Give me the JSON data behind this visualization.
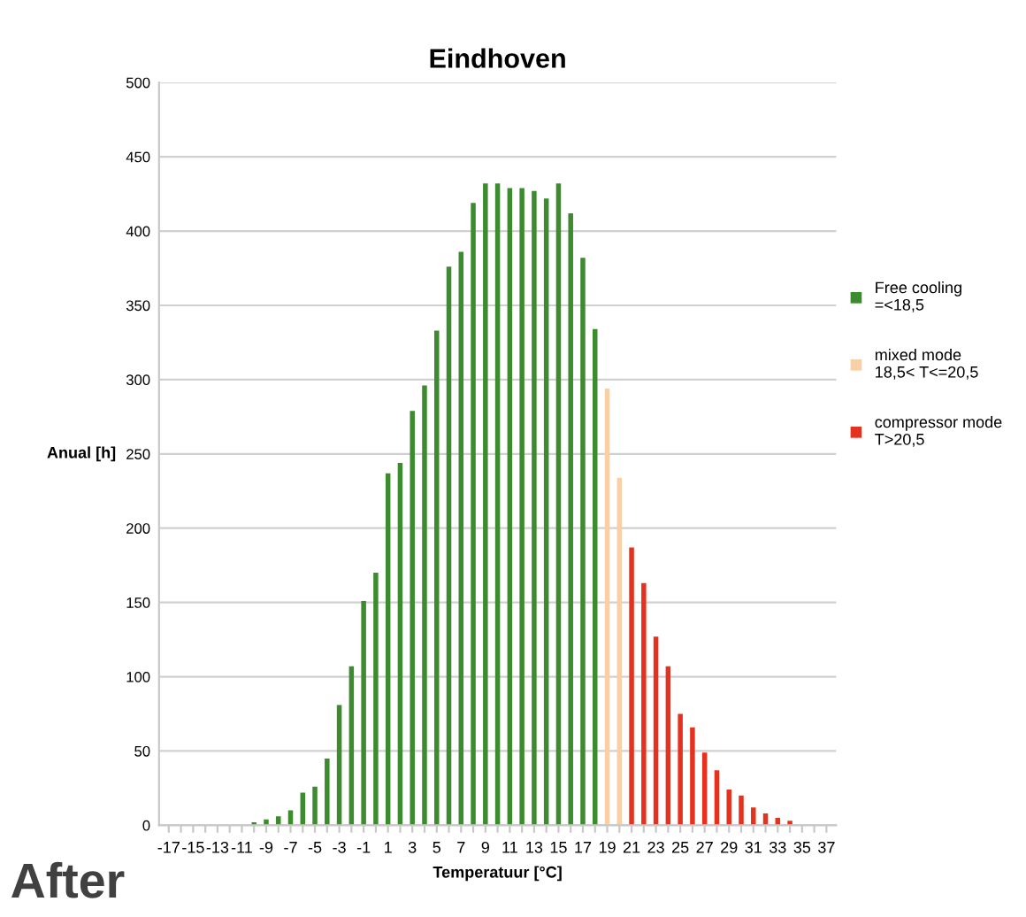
{
  "chart_data": {
    "type": "bar",
    "title": "Eindhoven",
    "xlabel": "Temperatuur [°C]",
    "ylabel": "Anual [h]",
    "categories": [
      "-17",
      null,
      "-15",
      null,
      "-13",
      null,
      "-11",
      null,
      "-9",
      null,
      "-7",
      null,
      "-5",
      null,
      "-3",
      null,
      "-1",
      null,
      "1",
      null,
      "3",
      null,
      "5",
      null,
      "7",
      null,
      "9",
      null,
      "11",
      null,
      "13",
      null,
      "15",
      null,
      "17",
      null,
      "19",
      null,
      "21",
      null,
      "23",
      null,
      "25",
      null,
      "27",
      null,
      "29",
      null,
      "31",
      null,
      "33",
      null,
      "35",
      null,
      "37"
    ],
    "series": [
      {
        "name": "Free cooling =<18,5",
        "color": "#3d8b2f",
        "values": [
          0,
          0,
          0,
          0,
          0,
          null,
          null,
          2,
          4,
          6,
          10,
          22,
          26,
          45,
          81,
          107,
          151,
          170,
          237,
          244,
          279,
          296,
          333,
          376,
          386,
          419,
          432,
          432,
          429,
          429,
          427,
          422,
          432,
          412,
          382,
          334,
          null,
          null,
          null,
          null,
          null,
          null,
          null,
          null,
          null,
          null,
          null,
          null,
          null,
          null,
          null,
          null,
          null,
          null,
          null
        ]
      },
      {
        "name": "mixed mode 18,5< T<=20,5",
        "color": "#f9cfa8",
        "values": [
          null,
          null,
          null,
          null,
          null,
          null,
          null,
          null,
          null,
          null,
          null,
          null,
          null,
          null,
          null,
          null,
          null,
          null,
          null,
          null,
          null,
          null,
          null,
          null,
          null,
          null,
          null,
          null,
          null,
          null,
          null,
          null,
          null,
          null,
          null,
          null,
          294,
          234,
          null,
          null,
          null,
          null,
          null,
          null,
          null,
          null,
          null,
          null,
          null,
          null,
          null,
          null,
          null,
          null,
          null
        ]
      },
      {
        "name": "compressor mode T>20,5",
        "color": "#e5321e",
        "values": [
          null,
          null,
          null,
          null,
          null,
          null,
          null,
          null,
          null,
          null,
          null,
          null,
          null,
          null,
          null,
          null,
          null,
          null,
          null,
          null,
          null,
          null,
          null,
          null,
          null,
          null,
          null,
          null,
          null,
          null,
          null,
          null,
          null,
          null,
          null,
          null,
          null,
          null,
          187,
          163,
          127,
          107,
          75,
          66,
          49,
          37,
          24,
          20,
          12,
          8,
          5,
          3,
          null,
          null,
          0
        ]
      }
    ],
    "ylim": [
      0,
      500
    ],
    "yticks": [
      0,
      50,
      100,
      150,
      200,
      250,
      300,
      350,
      400,
      450,
      500
    ],
    "grid": "y",
    "legend": "right",
    "annotations": [
      "After"
    ]
  }
}
